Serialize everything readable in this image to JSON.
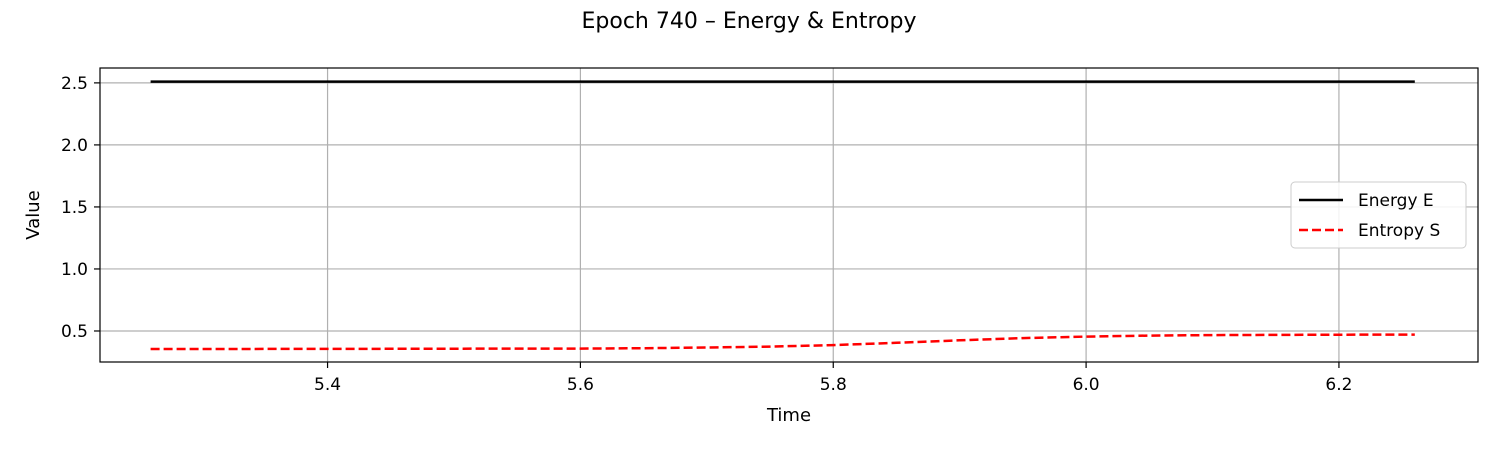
{
  "chart_data": {
    "type": "line",
    "title": "Epoch 740 – Energy & Entropy",
    "xlabel": "Time",
    "ylabel": "Value",
    "xlim": [
      5.22,
      6.31
    ],
    "ylim": [
      0.25,
      2.62
    ],
    "xticks": [
      5.4,
      5.6,
      5.8,
      6.0,
      6.2
    ],
    "yticks": [
      0.5,
      1.0,
      1.5,
      2.0,
      2.5
    ],
    "xtick_labels": [
      "5.4",
      "5.6",
      "5.8",
      "6.0",
      "6.2"
    ],
    "ytick_labels": [
      "0.5",
      "1.0",
      "1.5",
      "2.0",
      "2.5"
    ],
    "grid": true,
    "legend_position": "center-right",
    "series": [
      {
        "name": "Energy E",
        "color": "#000000",
        "style": "solid",
        "x": [
          5.26,
          5.4,
          5.6,
          5.8,
          6.0,
          6.2,
          6.26
        ],
        "y": [
          2.51,
          2.51,
          2.51,
          2.51,
          2.51,
          2.51,
          2.51
        ]
      },
      {
        "name": "Entropy S",
        "color": "#ff0000",
        "style": "dashed",
        "x": [
          5.26,
          5.4,
          5.5,
          5.6,
          5.65,
          5.7,
          5.75,
          5.8,
          5.85,
          5.9,
          5.95,
          6.0,
          6.05,
          6.1,
          6.2,
          6.26
        ],
        "y": [
          0.355,
          0.356,
          0.357,
          0.358,
          0.361,
          0.367,
          0.374,
          0.386,
          0.405,
          0.425,
          0.443,
          0.455,
          0.463,
          0.467,
          0.47,
          0.471
        ]
      }
    ]
  }
}
